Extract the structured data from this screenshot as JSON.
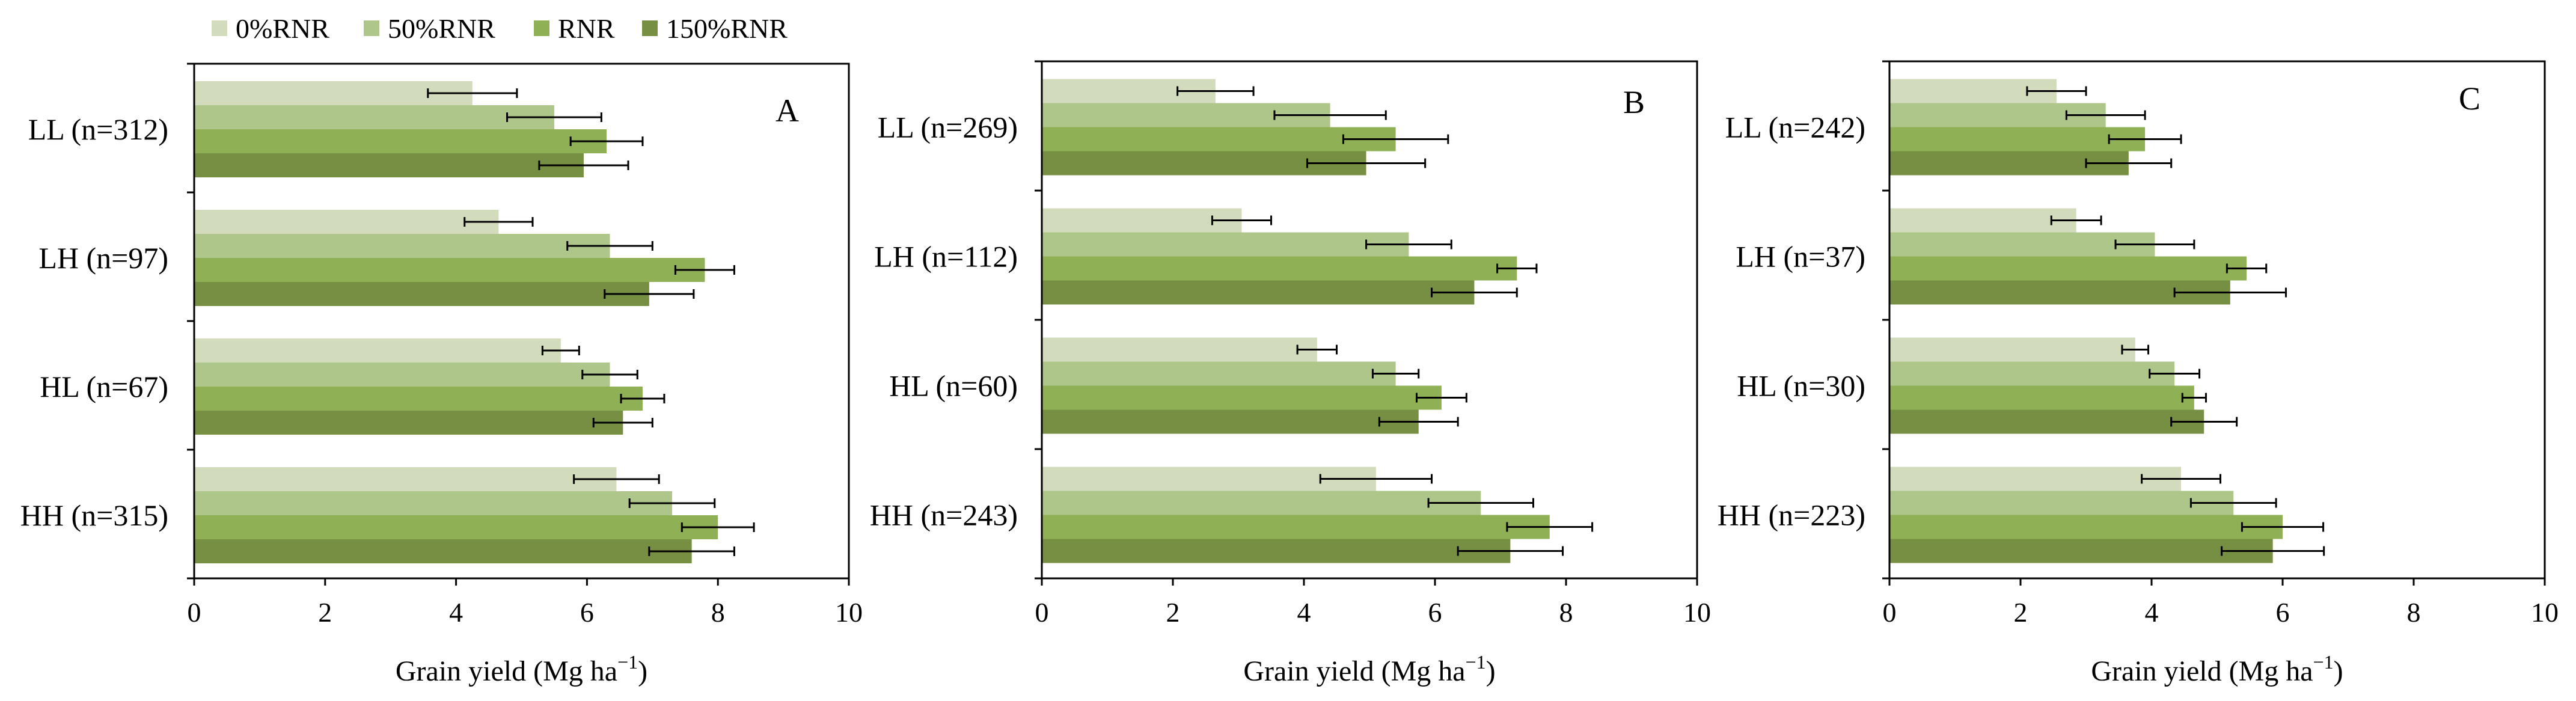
{
  "legend": [
    {
      "label": "0%RNR",
      "color": "#d2dcbd"
    },
    {
      "label": "50%RNR",
      "color": "#aec68a"
    },
    {
      "label": "RNR",
      "color": "#8fb054"
    },
    {
      "label": "150%RNR",
      "color": "#778f42"
    }
  ],
  "x_axis_title_main": "Grain yield (Mg ha",
  "x_axis_title_sup": "−1",
  "x_axis_title_end": ")",
  "chart_data": [
    {
      "type": "bar",
      "orientation": "horizontal",
      "panel": "A",
      "xlabel": "Grain yield (Mg ha−1)",
      "xlim": [
        0,
        10
      ],
      "xticks": [
        "0",
        "2",
        "4",
        "6",
        "8",
        "10"
      ],
      "categories": [
        "LL (n=312)",
        "LH (n=97)",
        "HL (n=67)",
        "HH (n=315)"
      ],
      "series": [
        {
          "name": "0%RNR",
          "values": [
            4.25,
            4.65,
            5.6,
            6.45
          ],
          "errors": [
            0.68,
            0.52,
            0.28,
            0.65
          ]
        },
        {
          "name": "50%RNR",
          "values": [
            5.5,
            6.35,
            6.35,
            7.3
          ],
          "errors": [
            0.72,
            0.65,
            0.42,
            0.65
          ]
        },
        {
          "name": "RNR",
          "values": [
            6.3,
            7.8,
            6.85,
            8.0
          ],
          "errors": [
            0.55,
            0.45,
            0.33,
            0.55
          ]
        },
        {
          "name": "150%RNR",
          "values": [
            5.95,
            6.95,
            6.55,
            7.6
          ],
          "errors": [
            0.68,
            0.68,
            0.45,
            0.65
          ]
        }
      ]
    },
    {
      "type": "bar",
      "orientation": "horizontal",
      "panel": "B",
      "xlabel": "Grain yield (Mg ha−1)",
      "xlim": [
        0,
        10
      ],
      "xticks": [
        "0",
        "2",
        "4",
        "6",
        "8",
        "10"
      ],
      "categories": [
        "LL (n=269)",
        "LH (n=112)",
        "HL (n=60)",
        "HH (n=243)"
      ],
      "series": [
        {
          "name": "0%RNR",
          "values": [
            2.65,
            3.05,
            4.2,
            5.1
          ],
          "errors": [
            0.58,
            0.45,
            0.3,
            0.85
          ]
        },
        {
          "name": "50%RNR",
          "values": [
            4.4,
            5.6,
            5.4,
            6.7
          ],
          "errors": [
            0.85,
            0.65,
            0.35,
            0.8
          ]
        },
        {
          "name": "RNR",
          "values": [
            5.4,
            7.25,
            6.1,
            7.75
          ],
          "errors": [
            0.8,
            0.3,
            0.38,
            0.65
          ]
        },
        {
          "name": "150%RNR",
          "values": [
            4.95,
            6.6,
            5.75,
            7.15
          ],
          "errors": [
            0.9,
            0.65,
            0.6,
            0.8
          ]
        }
      ]
    },
    {
      "type": "bar",
      "orientation": "horizontal",
      "panel": "C",
      "xlabel": "Grain yield (Mg ha−1)",
      "xlim": [
        0,
        10
      ],
      "xticks": [
        "0",
        "2",
        "4",
        "6",
        "8",
        "10"
      ],
      "categories": [
        "LL (n=242)",
        "LH (n=37)",
        "HL (n=30)",
        "HH (n=223)"
      ],
      "series": [
        {
          "name": "0%RNR",
          "values": [
            2.55,
            2.85,
            3.75,
            4.45
          ],
          "errors": [
            0.45,
            0.38,
            0.2,
            0.6
          ]
        },
        {
          "name": "50%RNR",
          "values": [
            3.3,
            4.05,
            4.35,
            5.25
          ],
          "errors": [
            0.6,
            0.6,
            0.38,
            0.65
          ]
        },
        {
          "name": "RNR",
          "values": [
            3.9,
            5.45,
            4.65,
            6.0
          ],
          "errors": [
            0.55,
            0.3,
            0.18,
            0.62
          ]
        },
        {
          "name": "150%RNR",
          "values": [
            3.65,
            5.2,
            4.8,
            5.85
          ],
          "errors": [
            0.65,
            0.85,
            0.5,
            0.78
          ]
        }
      ]
    }
  ]
}
